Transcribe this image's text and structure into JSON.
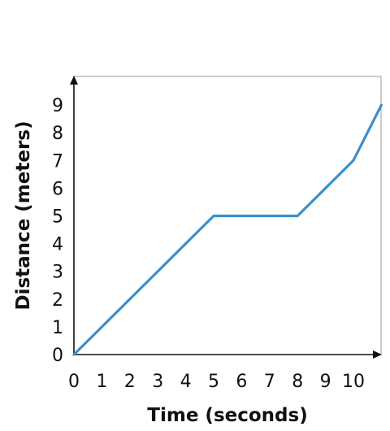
{
  "chart_data": {
    "type": "line",
    "xlabel": "Time (seconds)",
    "ylabel": "Distance (meters)",
    "x_ticks": [
      "0",
      "1",
      "2",
      "3",
      "4",
      "5",
      "6",
      "7",
      "8",
      "9",
      "10"
    ],
    "y_ticks": [
      "0",
      "1",
      "2",
      "3",
      "4",
      "5",
      "6",
      "7",
      "8",
      "9"
    ],
    "xlim": [
      0,
      11
    ],
    "ylim": [
      0,
      10
    ],
    "grid": false,
    "series": [
      {
        "x": [
          0,
          5,
          8,
          10,
          11
        ],
        "y": [
          0,
          5,
          5,
          7,
          9
        ]
      }
    ],
    "colors": {
      "line": "#3a8fd0",
      "axis": "#111111",
      "frame": "#999999"
    }
  }
}
